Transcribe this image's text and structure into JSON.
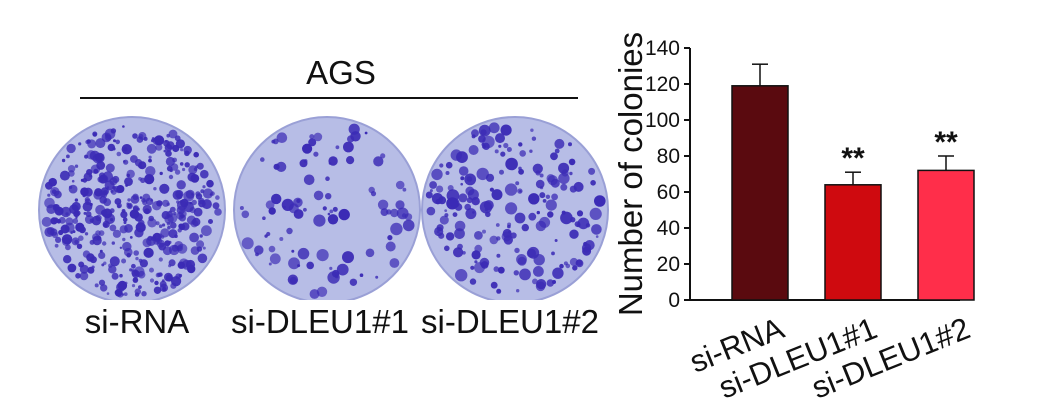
{
  "cell_line": "AGS",
  "plates": [
    {
      "label": "si-RNA",
      "colonies": "dense"
    },
    {
      "label": "si-DLEU1#1",
      "colonies": "sparse"
    },
    {
      "label": "si-DLEU1#2",
      "colonies": "moderate"
    }
  ],
  "colors": {
    "plate_bg": "#b7bde6",
    "colony": "#3b2bb5",
    "bar_si_rna": "#5a0a0f",
    "bar_dleu1_1": "#cf0a0f",
    "bar_dleu1_2": "#ff2e4a"
  },
  "chart_data": {
    "type": "bar",
    "title": "",
    "xlabel": "",
    "ylabel": "Number of colonies",
    "categories": [
      "si-RNA",
      "si-DLEU1#1",
      "si-DLEU1#2"
    ],
    "values": [
      119,
      64,
      72
    ],
    "errors": [
      12,
      7,
      8
    ],
    "annotations": [
      "",
      "**",
      "**"
    ],
    "ylim": [
      0,
      140
    ],
    "yticks": [
      0,
      20,
      40,
      60,
      80,
      100,
      120,
      140
    ],
    "grid": false,
    "legend": "none"
  }
}
